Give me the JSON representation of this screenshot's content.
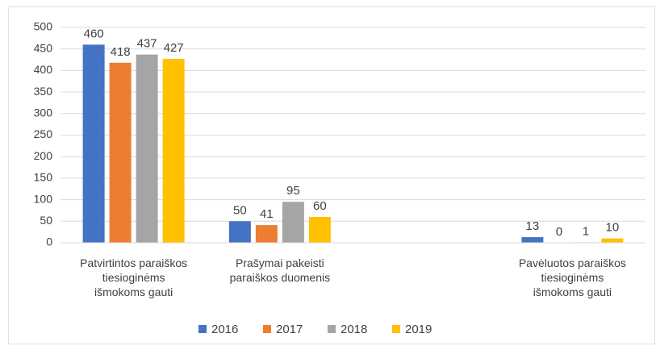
{
  "chart_data": {
    "type": "bar",
    "categories": [
      "Patvirtintos paraiškos\ntiesioginėms\nišmokoms gauti",
      "Prašymai pakeisti\nparaiškos duomenis",
      null,
      "Pavėluotos paraiškos\ntiesioginėms\nišmokoms gauti"
    ],
    "series": [
      {
        "name": "2016",
        "color": "#4472c4",
        "values": [
          460,
          50,
          null,
          13
        ]
      },
      {
        "name": "2017",
        "color": "#ed7d31",
        "values": [
          418,
          41,
          null,
          0
        ]
      },
      {
        "name": "2018",
        "color": "#a5a5a5",
        "values": [
          437,
          95,
          null,
          1
        ]
      },
      {
        "name": "2019",
        "color": "#ffc000",
        "values": [
          427,
          60,
          null,
          10
        ]
      }
    ],
    "ylim": [
      0,
      500
    ],
    "yticks": [
      0,
      50,
      100,
      150,
      200,
      250,
      300,
      350,
      400,
      450,
      500
    ],
    "grid": true,
    "legend": "bottom"
  }
}
